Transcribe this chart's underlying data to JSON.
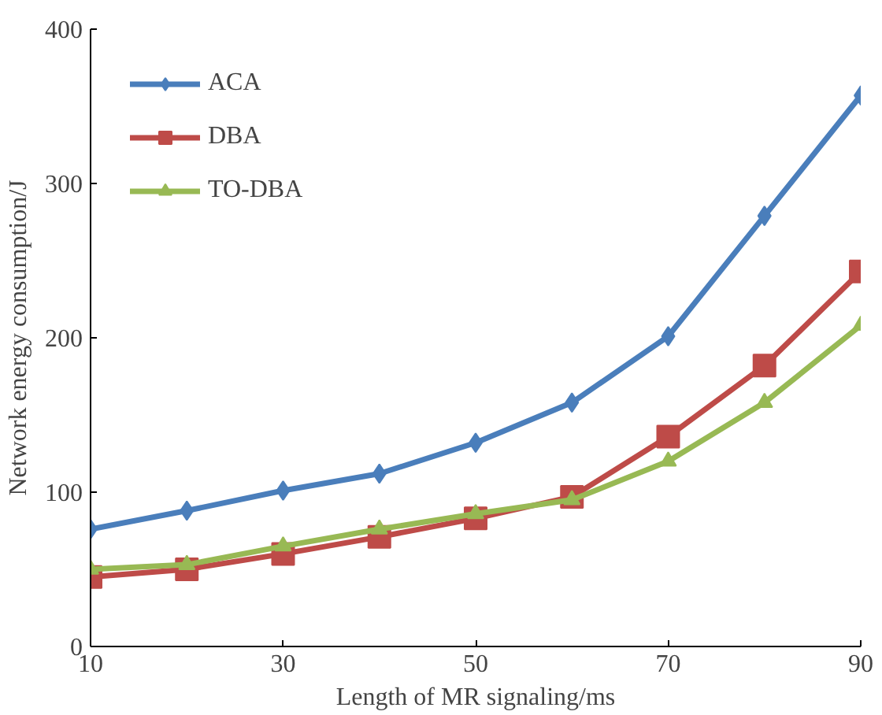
{
  "chart_data": {
    "type": "line",
    "xlabel": "Length of MR signaling/ms",
    "ylabel": "Network energy consumption/J",
    "x": [
      10,
      20,
      30,
      40,
      50,
      60,
      70,
      80,
      90
    ],
    "series": [
      {
        "name": "ACA",
        "color": "#4a7ebb",
        "marker": "diamond",
        "values": [
          76,
          88,
          101,
          112,
          132,
          158,
          201,
          279,
          357
        ]
      },
      {
        "name": "DBA",
        "color": "#be4b48",
        "marker": "square",
        "values": [
          45,
          50,
          60,
          71,
          83,
          97,
          136,
          182,
          243
        ]
      },
      {
        "name": "TO-DBA",
        "color": "#98b954",
        "marker": "triangle",
        "values": [
          50,
          53,
          65,
          76,
          86,
          95,
          120,
          158,
          208
        ]
      }
    ],
    "xlim": [
      10,
      90
    ],
    "xticks": [
      10,
      30,
      50,
      70,
      90
    ],
    "ylim": [
      0,
      400
    ],
    "yticks": [
      0,
      100,
      200,
      300,
      400
    ],
    "grid": false,
    "legend": "top left",
    "line_style": "solid"
  }
}
